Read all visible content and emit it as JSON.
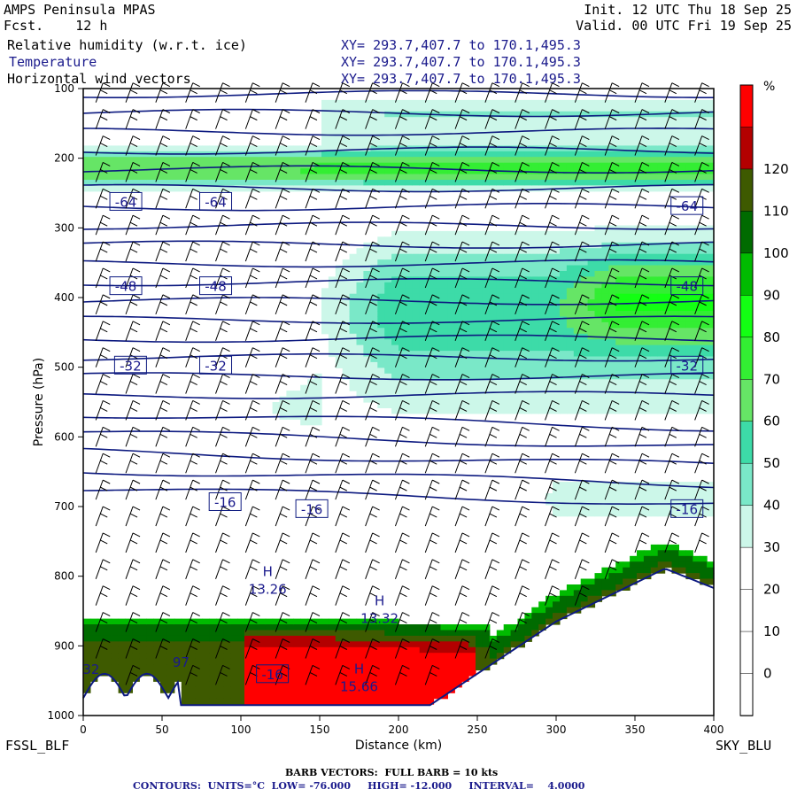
{
  "header": {
    "model": "AMPS Peninsula MPAS",
    "forecast": "Fcst.    12 h",
    "init": "Init. 12 UTC Thu 18 Sep 25",
    "valid": "Valid. 00 UTC Fri 19 Sep 25",
    "fields": [
      {
        "name": "Relative humidity (w.r.t. ice)",
        "xy": "XY= 293.7,407.7 to 170.1,495.3"
      },
      {
        "name": "Temperature",
        "xy": "XY= 293.7,407.7 to 170.1,495.3"
      },
      {
        "name": "Horizontal wind vectors",
        "xy": "XY= 293.7,407.7 to 170.1,495.3"
      }
    ]
  },
  "endpoints": {
    "left": "FSSL_BLF",
    "right": "SKY_BLU"
  },
  "footer": {
    "barbs": "BARB VECTORS:  FULL BARB = 10 kts",
    "contours": "CONTOURS:  UNITS=°C  LOW= -76.000     HIGH= -12.000     INTERVAL=    4.0000"
  },
  "colors": {
    "frame": "#000000",
    "contour": "#0d1a80",
    "barb": "#000000",
    "label": "#1a1a8c"
  },
  "chart_data": {
    "type": "cross-section",
    "xlabel": "Distance (km)",
    "ylabel": "Pressure (hPa)",
    "xlim": [
      0,
      400
    ],
    "ylim": [
      1000,
      100
    ],
    "x_ticks": [
      0,
      50,
      100,
      150,
      200,
      250,
      300,
      350,
      400
    ],
    "y_ticks": [
      100,
      200,
      300,
      400,
      500,
      600,
      700,
      800,
      900,
      1000
    ],
    "colorbar": {
      "unit": "%",
      "ticks": [
        0,
        10,
        20,
        30,
        40,
        50,
        60,
        70,
        80,
        90,
        100,
        110,
        120
      ],
      "bands": [
        {
          "low": -10,
          "high": 0,
          "color": "#ffffff"
        },
        {
          "low": 0,
          "high": 10,
          "color": "#ffffff"
        },
        {
          "low": 10,
          "high": 20,
          "color": "#ffffff"
        },
        {
          "low": 20,
          "high": 30,
          "color": "#ffffff"
        },
        {
          "low": 30,
          "high": 40,
          "color": "#ccf7e9"
        },
        {
          "low": 40,
          "high": 50,
          "color": "#7ae8c8"
        },
        {
          "low": 50,
          "high": 60,
          "color": "#3ddba8"
        },
        {
          "low": 60,
          "high": 70,
          "color": "#66e566"
        },
        {
          "low": 70,
          "high": 80,
          "color": "#33ee33"
        },
        {
          "low": 80,
          "high": 90,
          "color": "#13ff13"
        },
        {
          "low": 90,
          "high": 100,
          "color": "#00bb00"
        },
        {
          "low": 100,
          "high": 110,
          "color": "#006b00"
        },
        {
          "low": 110,
          "high": 120,
          "color": "#3e5a00"
        },
        {
          "low": 120,
          "high": 130,
          "color": "#b30000"
        },
        {
          "low": 130,
          "high": 140,
          "color": "#ff0000"
        }
      ]
    },
    "temperature_labels": [
      {
        "text": "-64",
        "x": 27,
        "p": 262
      },
      {
        "text": "-64",
        "x": 84,
        "p": 262
      },
      {
        "text": "-64",
        "x": 383,
        "p": 268
      },
      {
        "text": "-48",
        "x": 27,
        "p": 383
      },
      {
        "text": "-48",
        "x": 84,
        "p": 383
      },
      {
        "text": "-48",
        "x": 383,
        "p": 383
      },
      {
        "text": "-32",
        "x": 30,
        "p": 497
      },
      {
        "text": "-32",
        "x": 84,
        "p": 497
      },
      {
        "text": "-32",
        "x": 383,
        "p": 497
      },
      {
        "text": "-16",
        "x": 90,
        "p": 693
      },
      {
        "text": "-16",
        "x": 145,
        "p": 703
      },
      {
        "text": "-16",
        "x": 383,
        "p": 703
      },
      {
        "text": "-16",
        "x": 120,
        "p": 940
      }
    ],
    "highs": [
      {
        "value": "13.26",
        "x": 117,
        "p": 820
      },
      {
        "value": "13.32",
        "x": 188,
        "p": 862
      },
      {
        "value": "15.66",
        "x": 175,
        "p": 960
      }
    ],
    "partial_labels": [
      {
        "text": "32",
        "x": 5,
        "p": 940
      },
      {
        "text": "97",
        "x": 62,
        "p": 930
      }
    ]
  }
}
